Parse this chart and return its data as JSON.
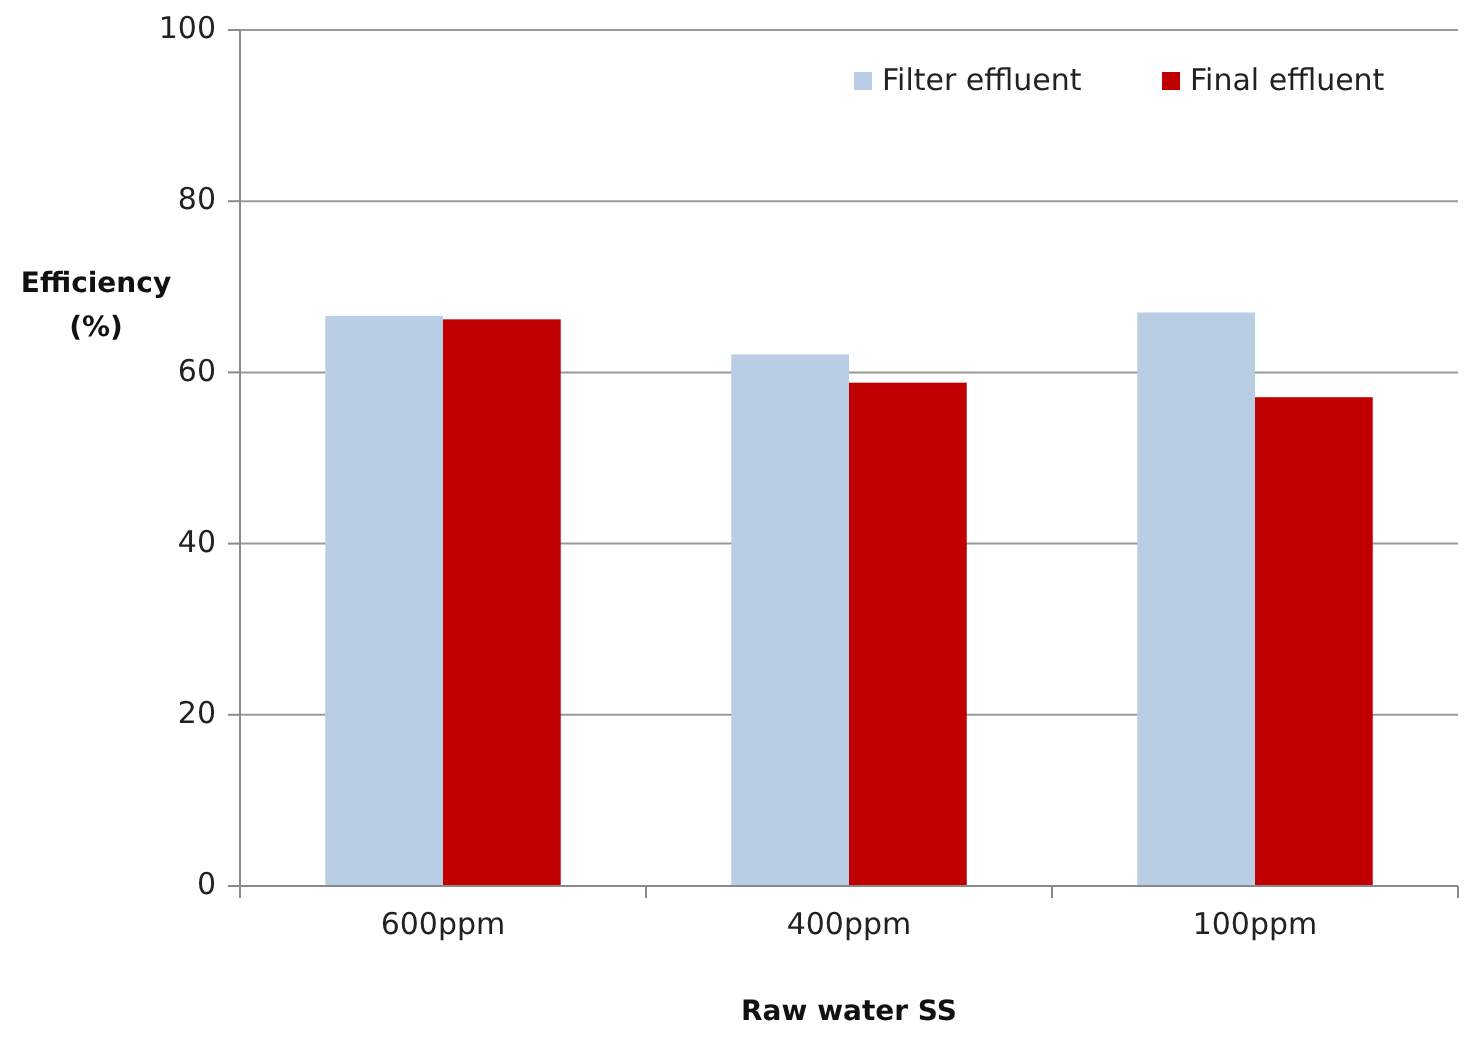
{
  "chart_data": {
    "type": "bar",
    "xlabel": "Raw water SS",
    "ylabel": "Efficiency (%)",
    "categories": [
      "600ppm",
      "400ppm",
      "100ppm"
    ],
    "series": [
      {
        "name": "Filter effluent",
        "color": "#b9cde5",
        "values": [
          66.6,
          62.1,
          67.0
        ]
      },
      {
        "name": "Final effluent",
        "color": "#c00000",
        "values": [
          66.2,
          58.8,
          57.1
        ]
      }
    ],
    "ylim": [
      0,
      100
    ],
    "yticks": [
      0,
      20,
      40,
      60,
      80,
      100
    ],
    "grid": "y",
    "legend": "top right"
  }
}
